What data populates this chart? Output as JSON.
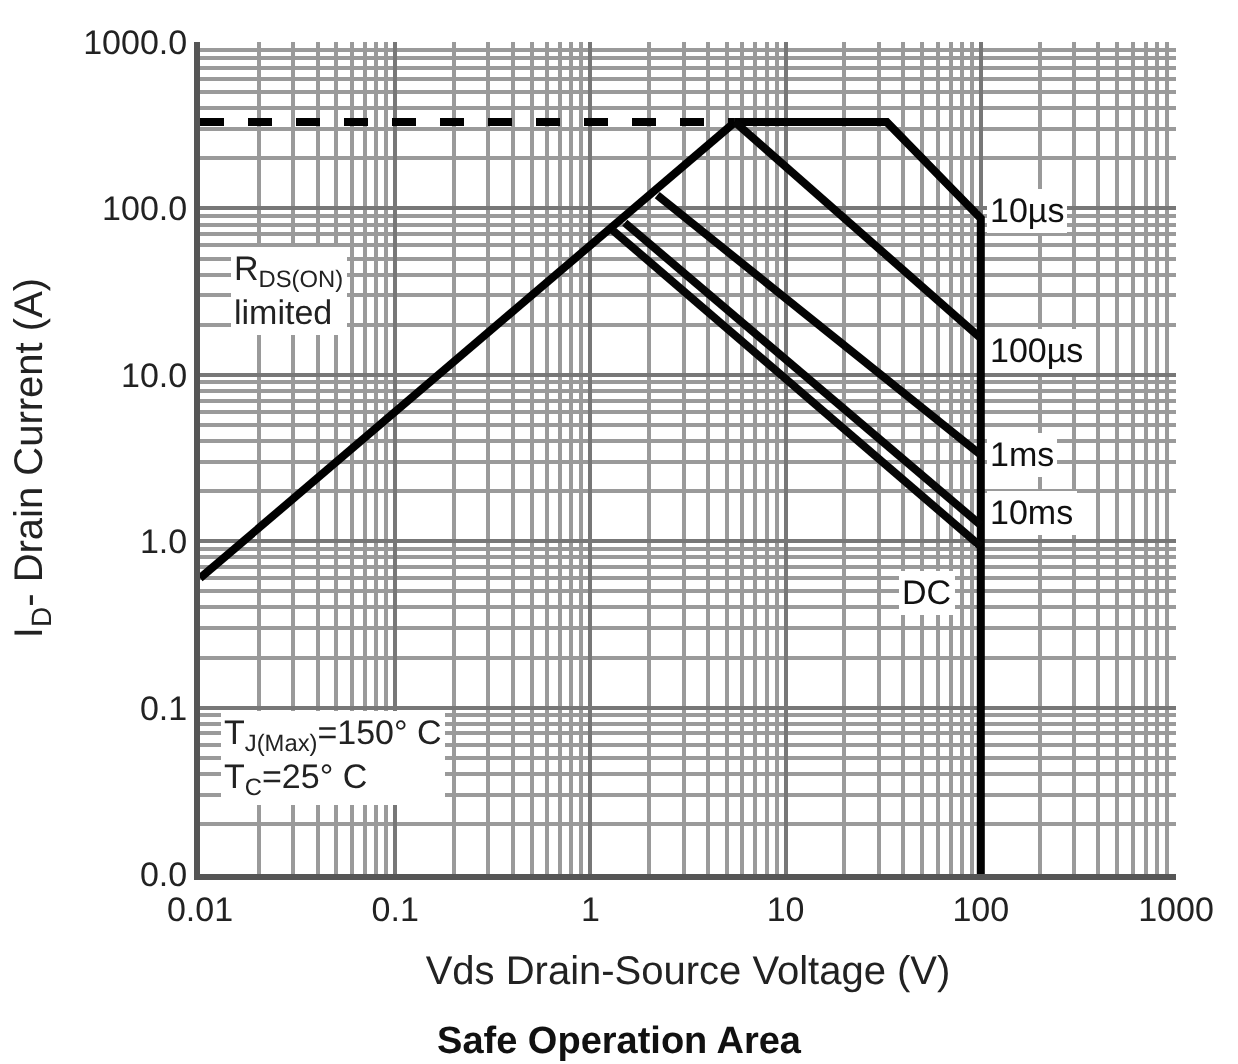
{
  "chart_data": {
    "type": "line",
    "title": "Safe Operation Area",
    "xlabel": "Vds Drain-Source Voltage (V)",
    "ylabel": "I$_{D}$- Drain Current (A)",
    "log": "xy",
    "grid": true,
    "legend": false,
    "marker": "none",
    "line_style": "solid",
    "xlim": [
      0.01,
      1000
    ],
    "xticks": [
      0.01,
      0.1,
      1,
      10,
      100,
      1000
    ],
    "ylim": [
      0.01,
      1000
    ],
    "yticks": [
      {
        "value": 0.01,
        "label": "0.0"
      },
      0.1,
      {
        "value": 1,
        "label": "1.0"
      },
      {
        "value": 10,
        "label": "10.0"
      },
      {
        "value": 100,
        "label": "100.0"
      },
      {
        "value": 1000,
        "label": "1000.0"
      }
    ],
    "series": [
      {
        "color": "#000000",
        "x": [
          0.01,
          5.5
        ],
        "values": [
          0.6,
          330
        ]
      },
      {
        "color": "#010101",
        "x": [
          0.01,
          5.5
        ],
        "values": [
          330,
          330
        ],
        "line_style": "dashed"
      },
      {
        "name": "10µs",
        "color": "#020202",
        "x": [
          5.5,
          33,
          100,
          100
        ],
        "values": [
          330,
          330,
          87,
          0.01
        ]
      },
      {
        "name": "100µs",
        "color": "#030303",
        "x": [
          5.5,
          100
        ],
        "values": [
          330,
          16.6
        ]
      },
      {
        "name": "1ms",
        "color": "#040404",
        "x": [
          2.2,
          100
        ],
        "values": [
          120,
          3.3
        ]
      },
      {
        "name": "10ms",
        "color": "#050505",
        "x": [
          1.5,
          100
        ],
        "values": [
          82,
          1.25
        ]
      },
      {
        "name": "DC",
        "color": "#060606",
        "x": [
          1.3,
          100
        ],
        "values": [
          74,
          0.93
        ]
      }
    ],
    "annotations": [
      "R$_{DS(ON)}$\nlimited",
      "T$_{J(Max)}$=150° C\nT$_{C}$=25° C"
    ]
  }
}
